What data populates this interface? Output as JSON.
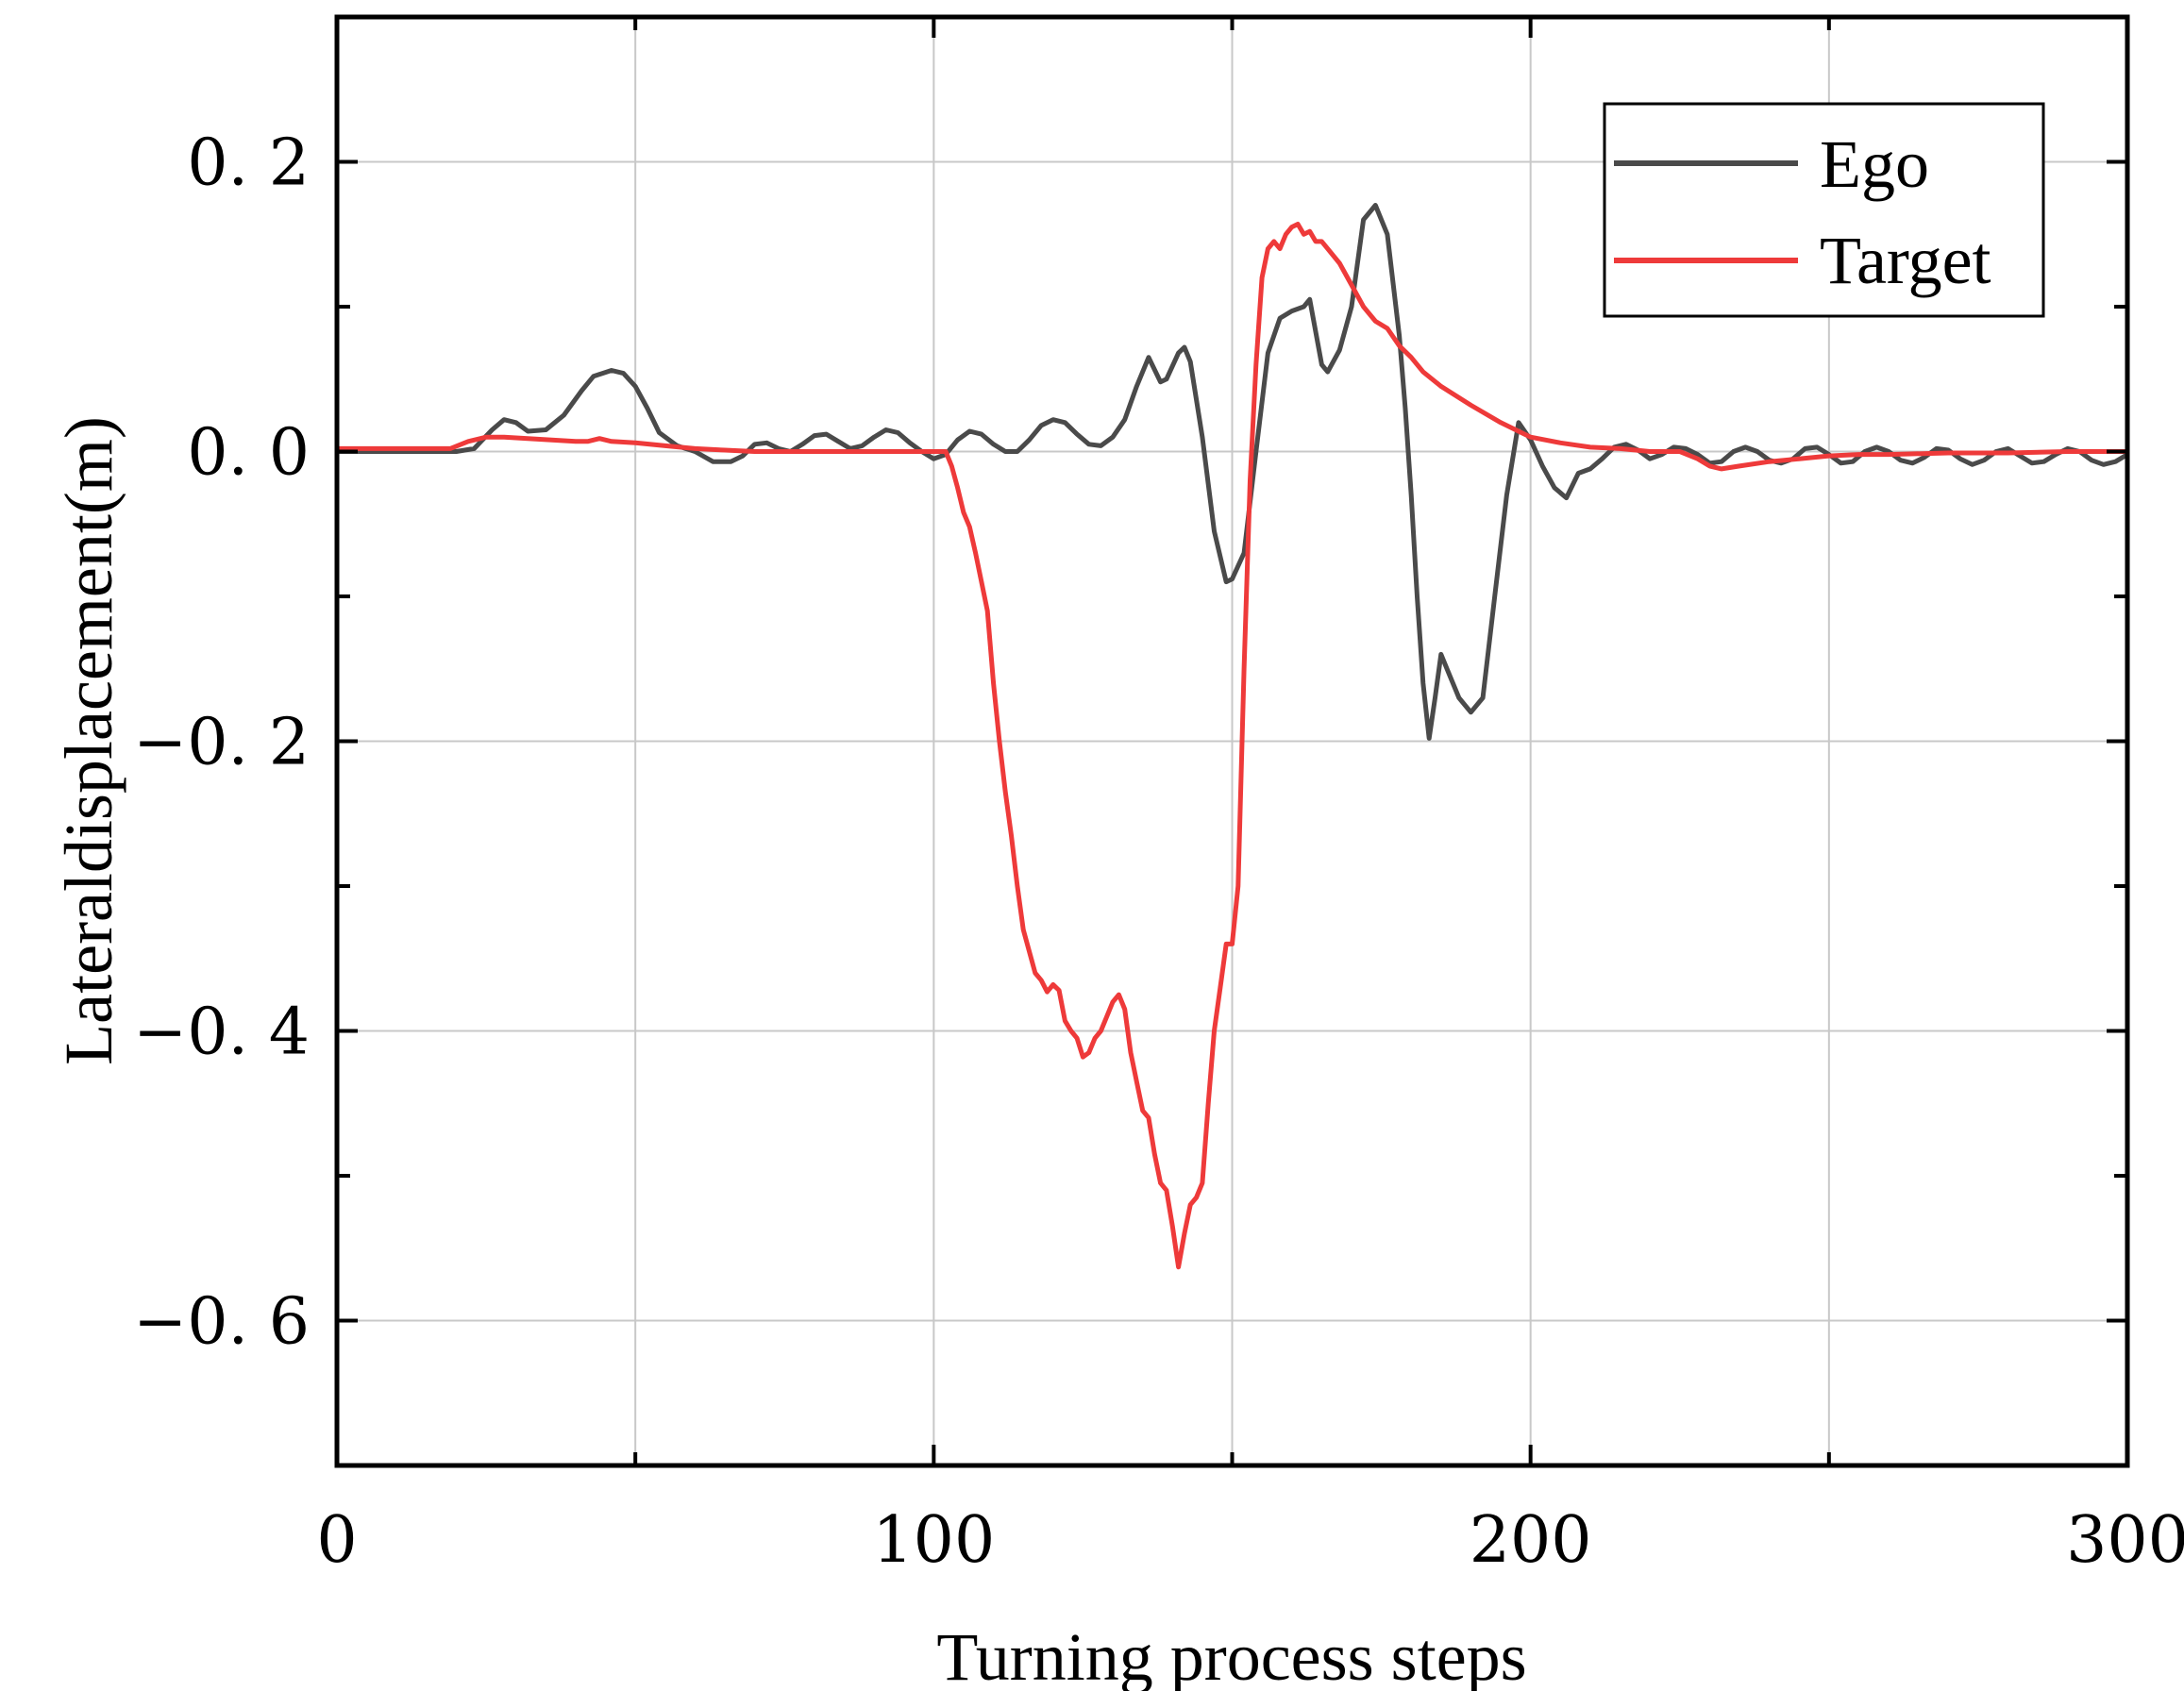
{
  "chart_data": {
    "type": "line",
    "title": "",
    "xlabel": "Turning process steps",
    "ylabel": "Lateraldisplacement(m)",
    "xlim": [
      0,
      300
    ],
    "ylim": [
      -0.7,
      0.3
    ],
    "xticks": [
      0,
      100,
      200,
      300
    ],
    "xtick_labels": [
      "0",
      "100",
      "200",
      "300"
    ],
    "yticks": [
      0.2,
      0.0,
      -0.2,
      -0.4,
      -0.6
    ],
    "ytick_labels": [
      "0. 2",
      "0. 0",
      "−0. 2",
      "−0. 4",
      "−0. 6"
    ],
    "grid": true,
    "legend_position": "top-right",
    "series": [
      {
        "name": "Ego",
        "color": "#4a4a4a",
        "points": [
          [
            0,
            0
          ],
          [
            10,
            0
          ],
          [
            20,
            0
          ],
          [
            23,
            0.002
          ],
          [
            26,
            0.015
          ],
          [
            28,
            0.022
          ],
          [
            30,
            0.02
          ],
          [
            32,
            0.014
          ],
          [
            35,
            0.015
          ],
          [
            38,
            0.025
          ],
          [
            41,
            0.042
          ],
          [
            43,
            0.052
          ],
          [
            46,
            0.056
          ],
          [
            48,
            0.054
          ],
          [
            50,
            0.045
          ],
          [
            52,
            0.03
          ],
          [
            54,
            0.013
          ],
          [
            57,
            0.004
          ],
          [
            60,
            0
          ],
          [
            63,
            -0.007
          ],
          [
            66,
            -0.007
          ],
          [
            68,
            -0.003
          ],
          [
            70,
            0.005
          ],
          [
            72,
            0.006
          ],
          [
            74,
            0.002
          ],
          [
            76,
            0
          ],
          [
            78,
            0.005
          ],
          [
            80,
            0.011
          ],
          [
            82,
            0.012
          ],
          [
            84,
            0.007
          ],
          [
            86,
            0.002
          ],
          [
            88,
            0.004
          ],
          [
            90,
            0.01
          ],
          [
            92,
            0.015
          ],
          [
            94,
            0.013
          ],
          [
            96,
            0.006
          ],
          [
            98,
            0
          ],
          [
            100,
            -0.005
          ],
          [
            102,
            -0.002
          ],
          [
            104,
            0.008
          ],
          [
            106,
            0.014
          ],
          [
            108,
            0.012
          ],
          [
            110,
            0.005
          ],
          [
            112,
            0
          ],
          [
            114,
            0
          ],
          [
            116,
            0.008
          ],
          [
            118,
            0.018
          ],
          [
            120,
            0.022
          ],
          [
            122,
            0.02
          ],
          [
            124,
            0.012
          ],
          [
            126,
            0.005
          ],
          [
            128,
            0.004
          ],
          [
            130,
            0.01
          ],
          [
            132,
            0.022
          ],
          [
            134,
            0.045
          ],
          [
            136,
            0.065
          ],
          [
            138,
            0.048
          ],
          [
            139,
            0.05
          ],
          [
            141,
            0.068
          ],
          [
            142,
            0.072
          ],
          [
            143,
            0.062
          ],
          [
            145,
            0.01
          ],
          [
            147,
            -0.055
          ],
          [
            149,
            -0.09
          ],
          [
            150,
            -0.088
          ],
          [
            152,
            -0.07
          ],
          [
            154,
            0
          ],
          [
            156,
            0.068
          ],
          [
            158,
            0.092
          ],
          [
            160,
            0.097
          ],
          [
            162,
            0.1
          ],
          [
            163,
            0.105
          ],
          [
            165,
            0.06
          ],
          [
            166,
            0.055
          ],
          [
            168,
            0.07
          ],
          [
            170,
            0.1
          ],
          [
            172,
            0.16
          ],
          [
            174,
            0.17
          ],
          [
            176,
            0.15
          ],
          [
            178,
            0.08
          ],
          [
            179,
            0.03
          ],
          [
            180,
            -0.03
          ],
          [
            181,
            -0.1
          ],
          [
            182,
            -0.16
          ],
          [
            183,
            -0.198
          ],
          [
            184,
            -0.17
          ],
          [
            185,
            -0.14
          ],
          [
            186,
            -0.15
          ],
          [
            188,
            -0.17
          ],
          [
            190,
            -0.18
          ],
          [
            192,
            -0.17
          ],
          [
            194,
            -0.1
          ],
          [
            196,
            -0.03
          ],
          [
            198,
            0.02
          ],
          [
            200,
            0.008
          ],
          [
            202,
            -0.01
          ],
          [
            204,
            -0.025
          ],
          [
            206,
            -0.032
          ],
          [
            208,
            -0.015
          ],
          [
            210,
            -0.012
          ],
          [
            212,
            -0.005
          ],
          [
            214,
            0.003
          ],
          [
            216,
            0.005
          ],
          [
            218,
            0.001
          ],
          [
            220,
            -0.005
          ],
          [
            222,
            -0.002
          ],
          [
            224,
            0.003
          ],
          [
            226,
            0.002
          ],
          [
            228,
            -0.002
          ],
          [
            230,
            -0.008
          ],
          [
            232,
            -0.007
          ],
          [
            234,
            0
          ],
          [
            236,
            0.003
          ],
          [
            238,
            0
          ],
          [
            240,
            -0.006
          ],
          [
            242,
            -0.008
          ],
          [
            244,
            -0.005
          ],
          [
            246,
            0.002
          ],
          [
            248,
            0.003
          ],
          [
            250,
            -0.002
          ],
          [
            252,
            -0.008
          ],
          [
            254,
            -0.007
          ],
          [
            256,
            0
          ],
          [
            258,
            0.003
          ],
          [
            260,
            0
          ],
          [
            262,
            -0.006
          ],
          [
            264,
            -0.008
          ],
          [
            266,
            -0.004
          ],
          [
            268,
            0.002
          ],
          [
            270,
            0.001
          ],
          [
            272,
            -0.005
          ],
          [
            274,
            -0.009
          ],
          [
            276,
            -0.006
          ],
          [
            278,
            0
          ],
          [
            280,
            0.002
          ],
          [
            282,
            -0.003
          ],
          [
            284,
            -0.008
          ],
          [
            286,
            -0.007
          ],
          [
            288,
            -0.002
          ],
          [
            290,
            0.002
          ],
          [
            292,
            0
          ],
          [
            294,
            -0.006
          ],
          [
            296,
            -0.009
          ],
          [
            298,
            -0.007
          ],
          [
            300,
            -0.002
          ]
        ]
      },
      {
        "name": "Target",
        "color": "#ee3a3a",
        "points": [
          [
            0,
            0.002
          ],
          [
            10,
            0.002
          ],
          [
            19,
            0.002
          ],
          [
            22,
            0.007
          ],
          [
            25,
            0.01
          ],
          [
            28,
            0.01
          ],
          [
            32,
            0.009
          ],
          [
            36,
            0.008
          ],
          [
            40,
            0.007
          ],
          [
            42,
            0.007
          ],
          [
            44,
            0.009
          ],
          [
            46,
            0.007
          ],
          [
            50,
            0.006
          ],
          [
            55,
            0.004
          ],
          [
            60,
            0.002
          ],
          [
            65,
            0.001
          ],
          [
            70,
            0
          ],
          [
            80,
            0
          ],
          [
            90,
            0
          ],
          [
            100,
            0
          ],
          [
            102,
            0
          ],
          [
            103,
            -0.01
          ],
          [
            104,
            -0.025
          ],
          [
            105,
            -0.042
          ],
          [
            106,
            -0.052
          ],
          [
            107,
            -0.07
          ],
          [
            108,
            -0.09
          ],
          [
            109,
            -0.11
          ],
          [
            110,
            -0.16
          ],
          [
            111,
            -0.2
          ],
          [
            112,
            -0.235
          ],
          [
            113,
            -0.265
          ],
          [
            114,
            -0.3
          ],
          [
            115,
            -0.33
          ],
          [
            116,
            -0.345
          ],
          [
            117,
            -0.36
          ],
          [
            118,
            -0.365
          ],
          [
            119,
            -0.373
          ],
          [
            120,
            -0.368
          ],
          [
            121,
            -0.372
          ],
          [
            122,
            -0.393
          ],
          [
            123,
            -0.4
          ],
          [
            124,
            -0.405
          ],
          [
            125,
            -0.418
          ],
          [
            126,
            -0.415
          ],
          [
            127,
            -0.405
          ],
          [
            128,
            -0.4
          ],
          [
            129,
            -0.39
          ],
          [
            130,
            -0.38
          ],
          [
            131,
            -0.375
          ],
          [
            132,
            -0.385
          ],
          [
            133,
            -0.415
          ],
          [
            134,
            -0.435
          ],
          [
            135,
            -0.455
          ],
          [
            136,
            -0.46
          ],
          [
            137,
            -0.485
          ],
          [
            138,
            -0.505
          ],
          [
            139,
            -0.51
          ],
          [
            140,
            -0.535
          ],
          [
            141,
            -0.563
          ],
          [
            142,
            -0.54
          ],
          [
            143,
            -0.52
          ],
          [
            144,
            -0.515
          ],
          [
            145,
            -0.505
          ],
          [
            146,
            -0.45
          ],
          [
            147,
            -0.4
          ],
          [
            148,
            -0.37
          ],
          [
            149,
            -0.34
          ],
          [
            150,
            -0.34
          ],
          [
            151,
            -0.3
          ],
          [
            152,
            -0.15
          ],
          [
            153,
            -0.02
          ],
          [
            154,
            0.06
          ],
          [
            155,
            0.12
          ],
          [
            156,
            0.14
          ],
          [
            157,
            0.145
          ],
          [
            158,
            0.14
          ],
          [
            159,
            0.15
          ],
          [
            160,
            0.155
          ],
          [
            161,
            0.157
          ],
          [
            162,
            0.15
          ],
          [
            163,
            0.152
          ],
          [
            164,
            0.145
          ],
          [
            165,
            0.145
          ],
          [
            166,
            0.14
          ],
          [
            168,
            0.13
          ],
          [
            170,
            0.115
          ],
          [
            172,
            0.1
          ],
          [
            174,
            0.09
          ],
          [
            176,
            0.085
          ],
          [
            178,
            0.073
          ],
          [
            180,
            0.065
          ],
          [
            182,
            0.055
          ],
          [
            185,
            0.045
          ],
          [
            190,
            0.032
          ],
          [
            195,
            0.02
          ],
          [
            200,
            0.01
          ],
          [
            205,
            0.006
          ],
          [
            210,
            0.003
          ],
          [
            215,
            0.002
          ],
          [
            220,
            0
          ],
          [
            225,
            0
          ],
          [
            228,
            -0.005
          ],
          [
            230,
            -0.01
          ],
          [
            232,
            -0.012
          ],
          [
            235,
            -0.01
          ],
          [
            240,
            -0.007
          ],
          [
            245,
            -0.005
          ],
          [
            250,
            -0.003
          ],
          [
            255,
            -0.002
          ],
          [
            260,
            -0.002
          ],
          [
            270,
            -0.001
          ],
          [
            280,
            -0.001
          ],
          [
            290,
            0
          ],
          [
            300,
            0
          ]
        ]
      }
    ]
  }
}
